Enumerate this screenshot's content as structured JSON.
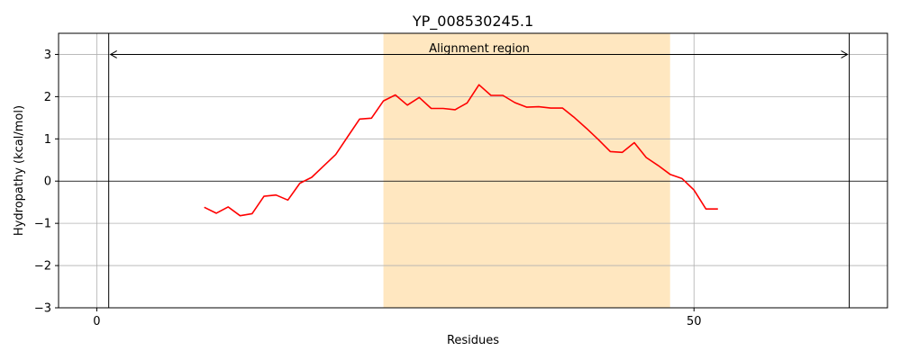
{
  "chart_data": {
    "type": "line",
    "title": "YP_008530245.1",
    "xlabel": "Residues",
    "ylabel": "Hydropathy (kcal/mol)",
    "xlim": [
      -3.2,
      66.2
    ],
    "ylim": [
      -3,
      3.5
    ],
    "xticks": [
      0,
      50
    ],
    "yticks": [
      -3,
      -2,
      -1,
      0,
      1,
      2,
      3
    ],
    "ytick_labels": [
      "−3",
      "−2",
      "−1",
      "0",
      "1",
      "2",
      "3"
    ],
    "grid": true,
    "highlight_region": [
      24,
      48
    ],
    "highlight_color": "#ffe7c0",
    "vertical_lines": [
      1,
      63
    ],
    "zero_line": true,
    "annotation": {
      "text": "Alignment region",
      "x_start": 1,
      "x_end": 63,
      "y": 3
    },
    "series": [
      {
        "color": "#ff0000",
        "x": [
          9,
          10,
          11,
          12,
          13,
          14,
          15,
          16,
          17,
          18,
          19,
          20,
          21,
          22,
          23,
          24,
          25,
          26,
          27,
          28,
          29,
          30,
          31,
          32,
          33,
          34,
          35,
          36,
          37,
          38,
          39,
          40,
          41,
          42,
          43,
          44,
          45,
          46,
          47,
          48,
          49,
          50,
          51,
          52
        ],
        "y": [
          -0.62,
          -0.76,
          -0.61,
          -0.82,
          -0.77,
          -0.36,
          -0.33,
          -0.45,
          -0.05,
          0.09,
          0.36,
          0.63,
          1.05,
          1.47,
          1.49,
          1.9,
          2.04,
          1.8,
          1.98,
          1.72,
          1.72,
          1.69,
          1.85,
          2.28,
          2.03,
          2.03,
          1.86,
          1.75,
          1.76,
          1.73,
          1.73,
          1.5,
          1.25,
          0.98,
          0.7,
          0.68,
          0.91,
          0.56,
          0.37,
          0.16,
          0.06,
          -0.21,
          -0.66,
          -0.66
        ]
      }
    ]
  }
}
